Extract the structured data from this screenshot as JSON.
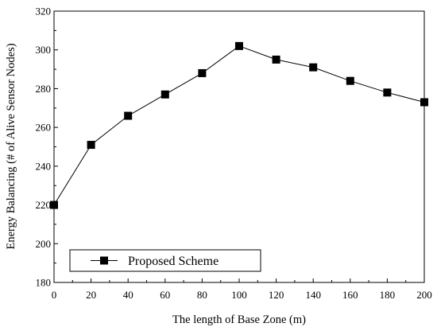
{
  "chart_data": {
    "type": "line",
    "title": "",
    "xlabel": "The length of Base Zone (m)",
    "ylabel": "Energy Balancing (# of Alive Sensor Nodes)",
    "xlim": [
      0,
      200
    ],
    "ylim": [
      180,
      320
    ],
    "xticks": [
      0,
      20,
      40,
      60,
      80,
      100,
      120,
      140,
      160,
      180,
      200
    ],
    "yticks": [
      180,
      200,
      220,
      240,
      260,
      280,
      300,
      320
    ],
    "grid": false,
    "legend_position": "bottom-left",
    "series": [
      {
        "name": "Proposed Scheme",
        "marker": "square",
        "color": "#000000",
        "x": [
          0,
          20,
          40,
          60,
          80,
          100,
          120,
          140,
          160,
          180,
          200
        ],
        "values": [
          220,
          251,
          266,
          277,
          288,
          302,
          295,
          291,
          284,
          278,
          273
        ]
      }
    ]
  }
}
